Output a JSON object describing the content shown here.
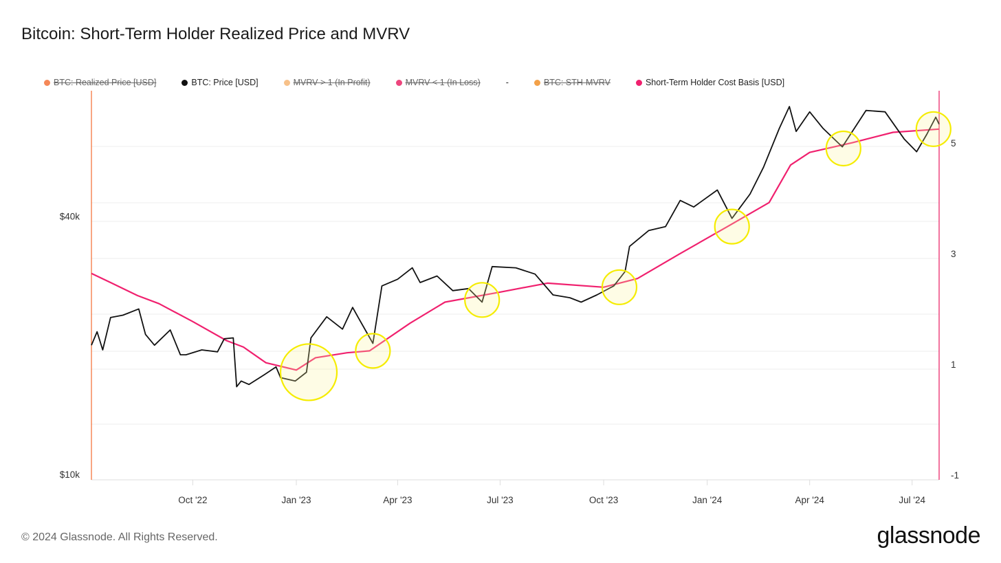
{
  "title": "Bitcoin: Short-Term Holder Realized Price and MVRV",
  "footer": "© 2024 Glassnode. All Rights Reserved.",
  "logo": "glassnode",
  "legend": [
    {
      "label": "BTC: Realized Price [USD]",
      "color": "#f26a2e",
      "enabled": false
    },
    {
      "label": "BTC: Price [USD]",
      "color": "#111111",
      "enabled": true
    },
    {
      "label": "MVRV > 1 (In Profit)",
      "color": "#f5b26b",
      "enabled": false
    },
    {
      "label": "MVRV < 1 (In Loss)",
      "color": "#e8175d",
      "enabled": false
    },
    {
      "label": "-",
      "color": "",
      "enabled": true
    },
    {
      "label": "BTC: STH-MVRV",
      "color": "#f08a1c",
      "enabled": false
    },
    {
      "label": "Short-Term Holder Cost Basis [USD]",
      "color": "#f0206e",
      "enabled": true
    }
  ],
  "chart_data": {
    "type": "line",
    "title": "Bitcoin: Short-Term Holder Realized Price and MVRV",
    "x_range": [
      "2022-07-03",
      "2024-07-25"
    ],
    "x_ticks": [
      {
        "date": "2022-10-01",
        "label": "Oct '22"
      },
      {
        "date": "2023-01-01",
        "label": "Jan '23"
      },
      {
        "date": "2023-04-01",
        "label": "Apr '23"
      },
      {
        "date": "2023-07-01",
        "label": "Jul '23"
      },
      {
        "date": "2023-10-01",
        "label": "Oct '23"
      },
      {
        "date": "2024-01-01",
        "label": "Jan '24"
      },
      {
        "date": "2024-04-01",
        "label": "Apr '24"
      },
      {
        "date": "2024-07-01",
        "label": "Jul '24"
      }
    ],
    "y_left": {
      "scale": "log",
      "ticks": [
        {
          "value": 10000,
          "label": "$10k"
        },
        {
          "value": 40000,
          "label": "$40k"
        }
      ]
    },
    "y_right": {
      "ticks": [
        {
          "value": 5,
          "label": "5"
        },
        {
          "value": 3,
          "label": "3"
        },
        {
          "value": 1,
          "label": "1"
        },
        {
          "value": -1,
          "label": "-1"
        }
      ]
    },
    "series": [
      {
        "name": "BTC: Price [USD]",
        "color": "#111111",
        "points": [
          [
            "2022-07-03",
            20000
          ],
          [
            "2022-07-08",
            21500
          ],
          [
            "2022-07-13",
            19500
          ],
          [
            "2022-07-20",
            23200
          ],
          [
            "2022-07-31",
            23500
          ],
          [
            "2022-08-14",
            24300
          ],
          [
            "2022-08-20",
            21200
          ],
          [
            "2022-08-28",
            20000
          ],
          [
            "2022-09-11",
            21700
          ],
          [
            "2022-09-20",
            19000
          ],
          [
            "2022-09-25",
            19000
          ],
          [
            "2022-10-09",
            19500
          ],
          [
            "2022-10-23",
            19300
          ],
          [
            "2022-10-29",
            20700
          ],
          [
            "2022-11-06",
            20800
          ],
          [
            "2022-11-09",
            16000
          ],
          [
            "2022-11-13",
            16500
          ],
          [
            "2022-11-20",
            16200
          ],
          [
            "2022-12-04",
            17100
          ],
          [
            "2022-12-14",
            17800
          ],
          [
            "2022-12-18",
            16800
          ],
          [
            "2022-12-31",
            16500
          ],
          [
            "2023-01-10",
            17300
          ],
          [
            "2023-01-14",
            20800
          ],
          [
            "2023-01-28",
            23300
          ],
          [
            "2023-02-11",
            21800
          ],
          [
            "2023-02-20",
            24500
          ],
          [
            "2023-02-25",
            23200
          ],
          [
            "2023-03-10",
            20200
          ],
          [
            "2023-03-18",
            27500
          ],
          [
            "2023-04-01",
            28500
          ],
          [
            "2023-04-14",
            30300
          ],
          [
            "2023-04-21",
            28000
          ],
          [
            "2023-05-06",
            29000
          ],
          [
            "2023-05-20",
            26800
          ],
          [
            "2023-06-03",
            27100
          ],
          [
            "2023-06-15",
            25200
          ],
          [
            "2023-06-24",
            30500
          ],
          [
            "2023-07-15",
            30300
          ],
          [
            "2023-08-01",
            29300
          ],
          [
            "2023-08-17",
            26200
          ],
          [
            "2023-09-01",
            25800
          ],
          [
            "2023-09-11",
            25200
          ],
          [
            "2023-09-25",
            26200
          ],
          [
            "2023-10-10",
            27500
          ],
          [
            "2023-10-20",
            29700
          ],
          [
            "2023-10-24",
            34000
          ],
          [
            "2023-11-10",
            37000
          ],
          [
            "2023-11-25",
            37800
          ],
          [
            "2023-12-08",
            43500
          ],
          [
            "2023-12-20",
            42000
          ],
          [
            "2024-01-10",
            46000
          ],
          [
            "2024-01-23",
            39500
          ],
          [
            "2024-02-08",
            45000
          ],
          [
            "2024-02-20",
            52000
          ],
          [
            "2024-03-05",
            64000
          ],
          [
            "2024-03-14",
            72000
          ],
          [
            "2024-03-20",
            63000
          ],
          [
            "2024-04-01",
            70000
          ],
          [
            "2024-04-13",
            64000
          ],
          [
            "2024-04-30",
            58000
          ],
          [
            "2024-05-21",
            70500
          ],
          [
            "2024-06-07",
            70000
          ],
          [
            "2024-06-24",
            60500
          ],
          [
            "2024-07-05",
            56500
          ],
          [
            "2024-07-14",
            62000
          ],
          [
            "2024-07-22",
            68000
          ],
          [
            "2024-07-25",
            65500
          ]
        ]
      },
      {
        "name": "Short-Term Holder Cost Basis [USD]",
        "color": "#f0206e",
        "points": [
          [
            "2022-07-03",
            29400
          ],
          [
            "2022-07-20",
            28000
          ],
          [
            "2022-08-13",
            26100
          ],
          [
            "2022-09-01",
            25000
          ],
          [
            "2022-10-01",
            22700
          ],
          [
            "2022-10-31",
            20500
          ],
          [
            "2022-11-15",
            19800
          ],
          [
            "2022-12-05",
            18200
          ],
          [
            "2023-01-01",
            17500
          ],
          [
            "2023-01-18",
            18700
          ],
          [
            "2023-02-15",
            19200
          ],
          [
            "2023-03-07",
            19400
          ],
          [
            "2023-04-12",
            22500
          ],
          [
            "2023-05-13",
            25200
          ],
          [
            "2023-07-01",
            26600
          ],
          [
            "2023-08-12",
            27900
          ],
          [
            "2023-10-01",
            27300
          ],
          [
            "2023-10-31",
            28600
          ],
          [
            "2023-12-07",
            32600
          ],
          [
            "2024-01-19",
            37800
          ],
          [
            "2024-02-25",
            43000
          ],
          [
            "2024-03-15",
            52600
          ],
          [
            "2024-04-01",
            56300
          ],
          [
            "2024-05-09",
            59300
          ],
          [
            "2024-06-14",
            62700
          ],
          [
            "2024-07-25",
            63800
          ]
        ]
      }
    ],
    "annotations": [
      {
        "type": "circle",
        "color": "#f5ec00",
        "date": "2023-01-12",
        "price": 17300,
        "size": "large"
      },
      {
        "type": "circle",
        "color": "#f5ec00",
        "date": "2023-03-10",
        "price": 19400
      },
      {
        "type": "circle",
        "color": "#f5ec00",
        "date": "2023-06-15",
        "price": 25500
      },
      {
        "type": "circle",
        "color": "#f5ec00",
        "date": "2023-10-15",
        "price": 27300
      },
      {
        "type": "circle",
        "color": "#f5ec00",
        "date": "2024-01-23",
        "price": 37800
      },
      {
        "type": "circle",
        "color": "#f5ec00",
        "date": "2024-05-01",
        "price": 57500
      },
      {
        "type": "circle",
        "color": "#f5ec00",
        "date": "2024-07-20",
        "price": 63800
      }
    ]
  }
}
